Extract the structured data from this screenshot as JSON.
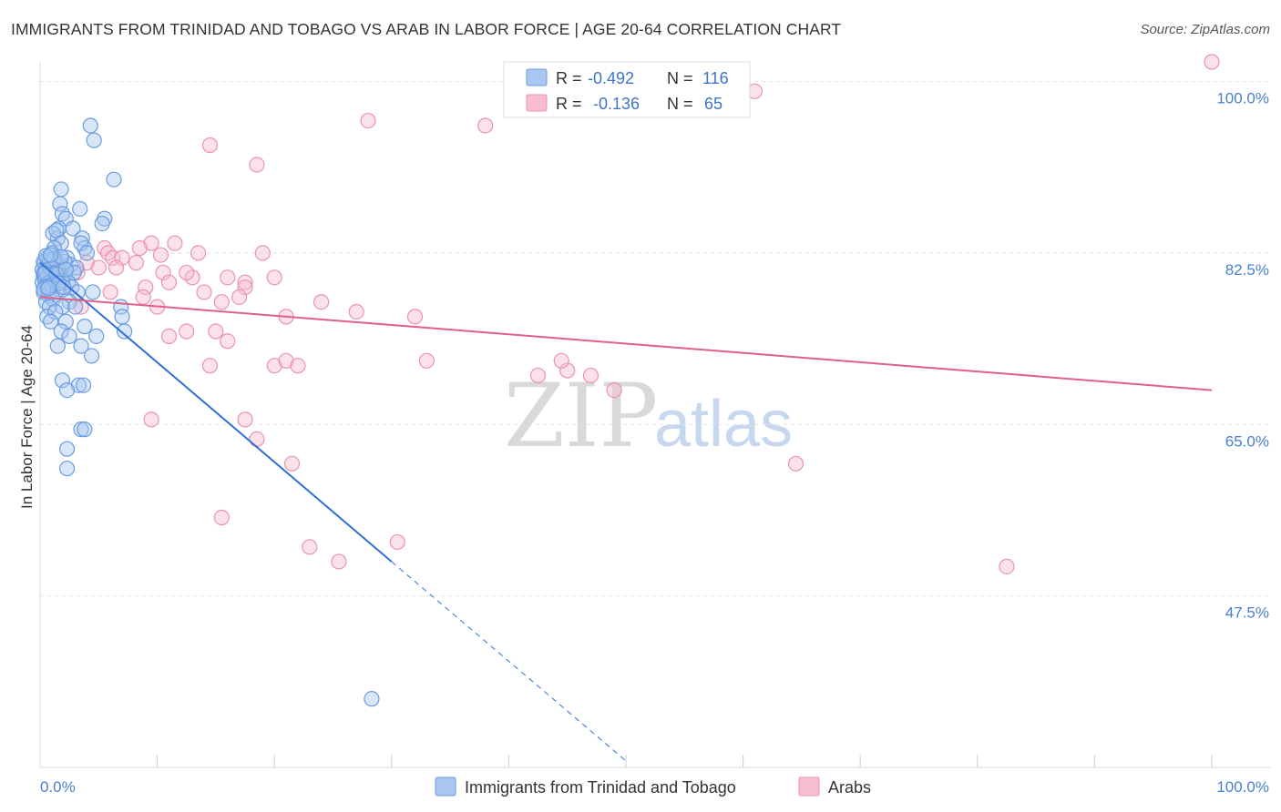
{
  "header": {
    "title": "IMMIGRANTS FROM TRINIDAD AND TOBAGO VS ARAB IN LABOR FORCE | AGE 20-64 CORRELATION CHART",
    "source": "Source: ZipAtlas.com"
  },
  "watermark": {
    "part1": "ZIP",
    "part2": "atlas"
  },
  "stats": {
    "r_label": "R =",
    "n_label": "N =",
    "series1": {
      "r": "-0.492",
      "n": "116"
    },
    "series2": {
      "r": "-0.136",
      "n": "65"
    }
  },
  "chart_data": {
    "type": "scatter",
    "title": "IMMIGRANTS FROM TRINIDAD AND TOBAGO VS ARAB IN LABOR FORCE | AGE 20-64 CORRELATION CHART",
    "xlabel": "",
    "ylabel": "In Labor Force | Age 20-64",
    "xlim": [
      0,
      100
    ],
    "ylim": [
      30,
      102
    ],
    "x_tick_labels": [
      "0.0%",
      "100.0%"
    ],
    "y_ticks": [
      47.5,
      65.0,
      82.5,
      100.0
    ],
    "y_tick_labels": [
      "47.5%",
      "65.0%",
      "82.5%",
      "100.0%"
    ],
    "grid": true,
    "legend_position": "bottom-center",
    "colors": {
      "series1_fill": "#a9c7f0",
      "series1_stroke": "#6a9ce0",
      "series1_line": "#2f6fd6",
      "series2_fill": "#f7bdd0",
      "series2_stroke": "#ec92b0",
      "series2_line": "#e0608a"
    },
    "series": [
      {
        "name": "Immigrants from Trinidad and Tobago",
        "r": -0.492,
        "n": 116,
        "trend": {
          "x0": 0,
          "y0": 81.5,
          "x1": 30,
          "y1": 51.0,
          "dash_to_x": 50
        },
        "points": [
          [
            4.3,
            95.5
          ],
          [
            4.6,
            94.0
          ],
          [
            6.3,
            90.0
          ],
          [
            1.8,
            89.0
          ],
          [
            1.7,
            87.5
          ],
          [
            3.4,
            87.0
          ],
          [
            1.9,
            86.5
          ],
          [
            2.2,
            86.0
          ],
          [
            5.5,
            86.0
          ],
          [
            1.6,
            85.0
          ],
          [
            2.8,
            85.0
          ],
          [
            5.3,
            85.5
          ],
          [
            1.5,
            84.0
          ],
          [
            3.6,
            84.0
          ],
          [
            1.1,
            84.5
          ],
          [
            1.4,
            84.8
          ],
          [
            1.8,
            83.5
          ],
          [
            3.8,
            83.0
          ],
          [
            3.5,
            83.5
          ],
          [
            1.2,
            83.0
          ],
          [
            0.6,
            82.0
          ],
          [
            1.0,
            82.5
          ],
          [
            2.3,
            82.0
          ],
          [
            4.0,
            82.5
          ],
          [
            0.4,
            81.5
          ],
          [
            0.7,
            81.2
          ],
          [
            1.3,
            81.5
          ],
          [
            2.0,
            81.0
          ],
          [
            2.6,
            81.3
          ],
          [
            3.1,
            81.0
          ],
          [
            0.3,
            80.5
          ],
          [
            0.8,
            80.8
          ],
          [
            1.5,
            80.5
          ],
          [
            2.1,
            80.2
          ],
          [
            2.9,
            80.5
          ],
          [
            0.5,
            80.0
          ],
          [
            1.0,
            80.0
          ],
          [
            1.7,
            80.0
          ],
          [
            0.2,
            79.5
          ],
          [
            0.6,
            79.5
          ],
          [
            1.2,
            79.3
          ],
          [
            2.4,
            79.5
          ],
          [
            0.4,
            79.0
          ],
          [
            0.9,
            79.0
          ],
          [
            1.6,
            78.8
          ],
          [
            2.7,
            79.0
          ],
          [
            0.3,
            78.5
          ],
          [
            0.7,
            78.2
          ],
          [
            1.4,
            78.5
          ],
          [
            3.2,
            78.5
          ],
          [
            4.5,
            78.5
          ],
          [
            0.5,
            77.5
          ],
          [
            1.1,
            77.8
          ],
          [
            2.5,
            77.5
          ],
          [
            0.8,
            77.0
          ],
          [
            1.9,
            77.0
          ],
          [
            3.0,
            77.0
          ],
          [
            6.9,
            77.0
          ],
          [
            0.6,
            76.0
          ],
          [
            1.3,
            76.5
          ],
          [
            7.0,
            76.0
          ],
          [
            0.9,
            75.5
          ],
          [
            2.2,
            75.5
          ],
          [
            3.8,
            75.0
          ],
          [
            1.8,
            74.5
          ],
          [
            7.2,
            74.5
          ],
          [
            2.5,
            74.0
          ],
          [
            4.8,
            74.0
          ],
          [
            1.5,
            73.0
          ],
          [
            3.5,
            73.0
          ],
          [
            4.4,
            72.0
          ],
          [
            1.9,
            69.5
          ],
          [
            3.3,
            69.0
          ],
          [
            3.7,
            69.0
          ],
          [
            2.3,
            68.5
          ],
          [
            3.5,
            64.5
          ],
          [
            3.8,
            64.5
          ],
          [
            2.3,
            62.5
          ],
          [
            2.3,
            60.5
          ],
          [
            28.3,
            37.0
          ],
          [
            0.3,
            80.2
          ],
          [
            0.5,
            81.0
          ],
          [
            0.7,
            80.3
          ],
          [
            0.9,
            80.6
          ],
          [
            1.1,
            80.4
          ],
          [
            1.3,
            79.8
          ],
          [
            0.2,
            80.8
          ],
          [
            0.4,
            79.8
          ],
          [
            0.6,
            81.3
          ],
          [
            0.8,
            79.6
          ],
          [
            1.0,
            81.0
          ],
          [
            1.2,
            80.1
          ],
          [
            1.4,
            79.9
          ],
          [
            1.6,
            81.4
          ],
          [
            0.3,
            81.6
          ],
          [
            0.5,
            80.6
          ],
          [
            0.7,
            79.4
          ],
          [
            0.9,
            80.9
          ],
          [
            1.1,
            81.7
          ],
          [
            1.5,
            80.7
          ],
          [
            1.9,
            79.7
          ],
          [
            2.1,
            81.6
          ],
          [
            0.4,
            80.4
          ],
          [
            0.6,
            79.1
          ],
          [
            0.8,
            81.8
          ],
          [
            1.0,
            79.2
          ],
          [
            1.2,
            81.9
          ],
          [
            1.4,
            80.3
          ],
          [
            1.6,
            79.4
          ],
          [
            1.8,
            82.1
          ],
          [
            2.0,
            79.0
          ],
          [
            2.2,
            80.8
          ],
          [
            0.3,
            78.8
          ],
          [
            0.5,
            82.2
          ],
          [
            0.7,
            78.9
          ],
          [
            0.9,
            82.3
          ]
        ]
      },
      {
        "name": "Arabs",
        "r": -0.136,
        "n": 65,
        "trend": {
          "x0": 0,
          "y0": 78.0,
          "x1": 100,
          "y1": 68.5
        },
        "points": [
          [
            100.0,
            102.0
          ],
          [
            61.0,
            99.0
          ],
          [
            28.0,
            96.0
          ],
          [
            38.0,
            95.5
          ],
          [
            14.5,
            93.5
          ],
          [
            18.5,
            91.5
          ],
          [
            5.5,
            83.0
          ],
          [
            9.5,
            83.5
          ],
          [
            11.5,
            83.5
          ],
          [
            8.5,
            83.0
          ],
          [
            5.8,
            82.5
          ],
          [
            6.2,
            82.0
          ],
          [
            7.0,
            82.0
          ],
          [
            10.3,
            82.3
          ],
          [
            13.5,
            82.5
          ],
          [
            19.0,
            82.5
          ],
          [
            4.0,
            81.5
          ],
          [
            5.0,
            81.0
          ],
          [
            6.5,
            81.0
          ],
          [
            8.2,
            81.5
          ],
          [
            3.2,
            80.5
          ],
          [
            10.5,
            80.5
          ],
          [
            13.0,
            80.0
          ],
          [
            16.0,
            80.0
          ],
          [
            17.5,
            79.5
          ],
          [
            9.0,
            79.0
          ],
          [
            11.0,
            79.5
          ],
          [
            12.5,
            80.5
          ],
          [
            14.0,
            78.5
          ],
          [
            17.5,
            79.0
          ],
          [
            20.0,
            80.0
          ],
          [
            6.0,
            78.5
          ],
          [
            8.8,
            78.0
          ],
          [
            15.5,
            77.5
          ],
          [
            17.0,
            78.0
          ],
          [
            21.0,
            76.0
          ],
          [
            24.0,
            77.5
          ],
          [
            27.0,
            76.5
          ],
          [
            32.0,
            76.0
          ],
          [
            10.0,
            77.0
          ],
          [
            3.5,
            77.0
          ],
          [
            15.0,
            74.5
          ],
          [
            11.0,
            74.0
          ],
          [
            12.5,
            74.5
          ],
          [
            16.0,
            73.5
          ],
          [
            20.0,
            71.0
          ],
          [
            21.0,
            71.5
          ],
          [
            14.5,
            71.0
          ],
          [
            22.0,
            71.0
          ],
          [
            33.0,
            71.5
          ],
          [
            42.5,
            70.0
          ],
          [
            45.0,
            70.5
          ],
          [
            44.5,
            71.5
          ],
          [
            47.0,
            70.0
          ],
          [
            49.0,
            68.5
          ],
          [
            9.5,
            65.5
          ],
          [
            17.5,
            65.5
          ],
          [
            18.5,
            63.5
          ],
          [
            21.5,
            61.0
          ],
          [
            64.5,
            61.0
          ],
          [
            15.5,
            55.5
          ],
          [
            30.5,
            53.0
          ],
          [
            23.0,
            52.5
          ],
          [
            25.5,
            51.0
          ],
          [
            82.5,
            50.5
          ]
        ]
      }
    ]
  },
  "legend": {
    "items": [
      {
        "label": "Immigrants from Trinidad and Tobago"
      },
      {
        "label": "Arabs"
      }
    ]
  }
}
